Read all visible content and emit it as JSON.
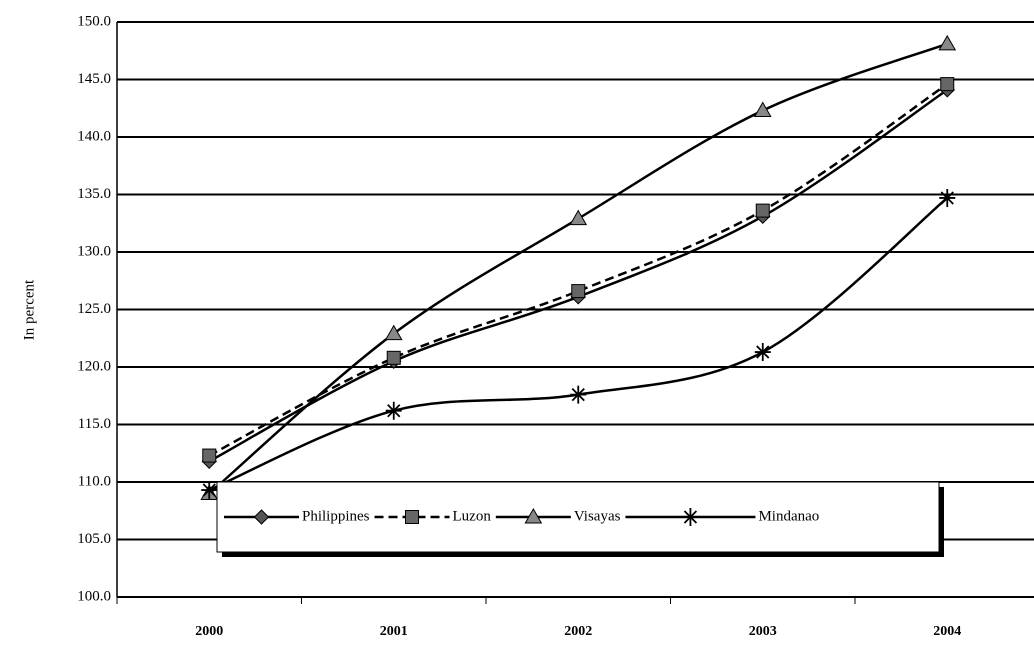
{
  "chart_data": {
    "type": "line",
    "y_label": "In percent",
    "categories": [
      "2000",
      "2001",
      "2002",
      "2003",
      "2004"
    ],
    "series": [
      {
        "name": "Philippines",
        "color": "#000000",
        "dash": false,
        "marker": "diamond",
        "values": [
          111.8,
          120.5,
          126.1,
          133.1,
          144.1
        ]
      },
      {
        "name": "Luzon",
        "color": "#000000",
        "dash": true,
        "marker": "square",
        "values": [
          112.3,
          120.8,
          126.6,
          133.6,
          144.6
        ]
      },
      {
        "name": "Visayas",
        "color": "#000000",
        "dash": false,
        "marker": "triangle",
        "values": [
          109.0,
          122.9,
          132.9,
          142.3,
          148.1
        ]
      },
      {
        "name": "Mindanao",
        "color": "#000000",
        "dash": false,
        "marker": "asterisk",
        "values": [
          109.3,
          116.2,
          117.6,
          121.3,
          134.7
        ]
      }
    ],
    "ylim": [
      100,
      150
    ],
    "yticks": [
      {
        "value": 100,
        "label": "100.0"
      },
      {
        "value": 105,
        "label": "105.0"
      },
      {
        "value": 110,
        "label": "110.0"
      },
      {
        "value": 115,
        "label": "115.0"
      },
      {
        "value": 120,
        "label": "120.0"
      },
      {
        "value": 125,
        "label": "125.0"
      },
      {
        "value": 130,
        "label": "130.0"
      },
      {
        "value": 135,
        "label": "135.0"
      },
      {
        "value": 140,
        "label": "140.0"
      },
      {
        "value": 145,
        "label": "145.0"
      },
      {
        "value": 150,
        "label": "150.0"
      }
    ],
    "grid": true,
    "smooth": true
  }
}
